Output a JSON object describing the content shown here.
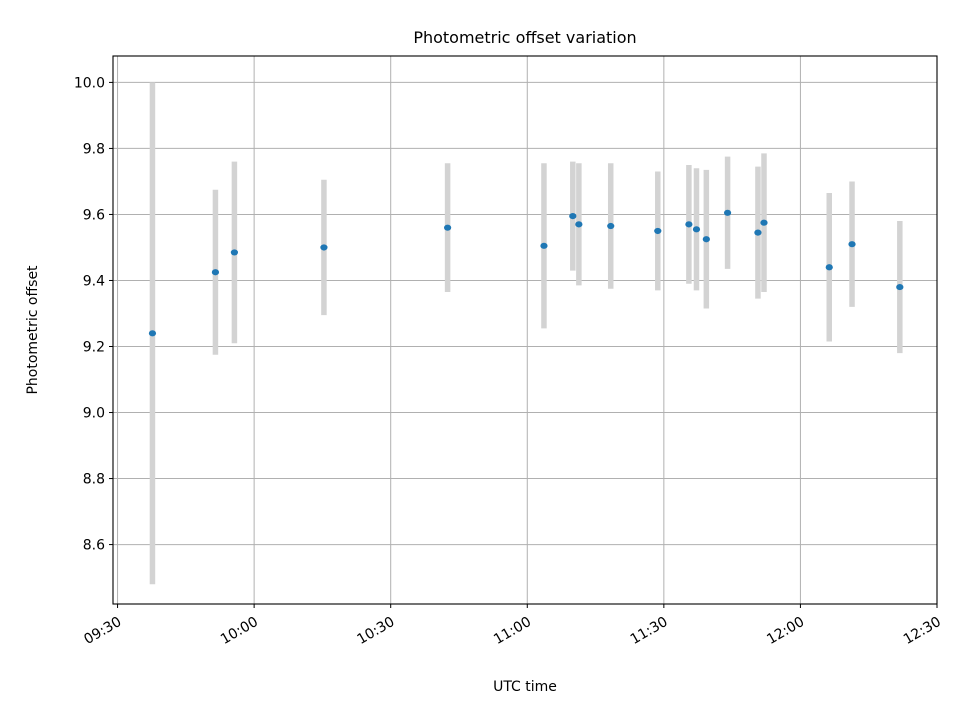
{
  "chart_data": {
    "type": "scatter",
    "title": "Photometric offset variation",
    "xlabel": "UTC time",
    "ylabel": "Photometric offset",
    "x_tick_labels": [
      "09:30",
      "10:00",
      "10:30",
      "11:00",
      "11:30",
      "12:00",
      "12:30"
    ],
    "y_tick_labels": [
      "8.6",
      "8.8",
      "9.0",
      "9.2",
      "9.4",
      "9.6",
      "9.8",
      "10.0"
    ],
    "xlim": [
      "09:29",
      "12:30"
    ],
    "ylim": [
      8.42,
      10.08
    ],
    "grid": true,
    "series": [
      {
        "points": [
          {
            "time": "09:37:40",
            "y": 9.24,
            "err": 0.76
          },
          {
            "time": "09:51:30",
            "y": 9.425,
            "err": 0.25
          },
          {
            "time": "09:55:40",
            "y": 9.485,
            "err": 0.275
          },
          {
            "time": "10:15:20",
            "y": 9.5,
            "err": 0.205
          },
          {
            "time": "10:42:30",
            "y": 9.56,
            "err": 0.195
          },
          {
            "time": "11:03:40",
            "y": 9.505,
            "err": 0.25
          },
          {
            "time": "11:10:00",
            "y": 9.595,
            "err": 0.165
          },
          {
            "time": "11:11:20",
            "y": 9.57,
            "err": 0.185
          },
          {
            "time": "11:18:20",
            "y": 9.565,
            "err": 0.19
          },
          {
            "time": "11:28:40",
            "y": 9.55,
            "err": 0.18
          },
          {
            "time": "11:35:30",
            "y": 9.57,
            "err": 0.18
          },
          {
            "time": "11:37:10",
            "y": 9.555,
            "err": 0.185
          },
          {
            "time": "11:39:20",
            "y": 9.525,
            "err": 0.21
          },
          {
            "time": "11:44:00",
            "y": 9.605,
            "err": 0.17
          },
          {
            "time": "11:50:40",
            "y": 9.545,
            "err": 0.2
          },
          {
            "time": "11:52:00",
            "y": 9.575,
            "err": 0.21
          },
          {
            "time": "12:06:20",
            "y": 9.44,
            "err": 0.225
          },
          {
            "time": "12:11:20",
            "y": 9.51,
            "err": 0.19
          },
          {
            "time": "12:21:50",
            "y": 9.38,
            "err": 0.2
          }
        ]
      }
    ]
  }
}
